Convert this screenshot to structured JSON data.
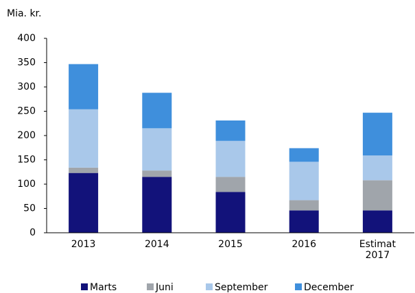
{
  "chart_data": {
    "type": "stacked_bar",
    "y_label": "Mia. kr.",
    "categories": [
      "2013",
      "2014",
      "2015",
      "2016",
      "Estimat 2017"
    ],
    "series": [
      {
        "name": "Marts",
        "color": "#12127a",
        "values": [
          123,
          115,
          84,
          46,
          46
        ]
      },
      {
        "name": "Juni",
        "color": "#a0a5ab",
        "values": [
          11,
          13,
          31,
          21,
          62
        ]
      },
      {
        "name": "September",
        "color": "#a9c8ea",
        "values": [
          120,
          87,
          74,
          79,
          51
        ]
      },
      {
        "name": "December",
        "color": "#3f8fdc",
        "values": [
          93,
          73,
          42,
          28,
          88
        ]
      }
    ],
    "ylim": [
      0,
      400
    ],
    "yticks": [
      0,
      50,
      100,
      150,
      200,
      250,
      300,
      350,
      400
    ],
    "grid": false,
    "legend": "bottom"
  }
}
